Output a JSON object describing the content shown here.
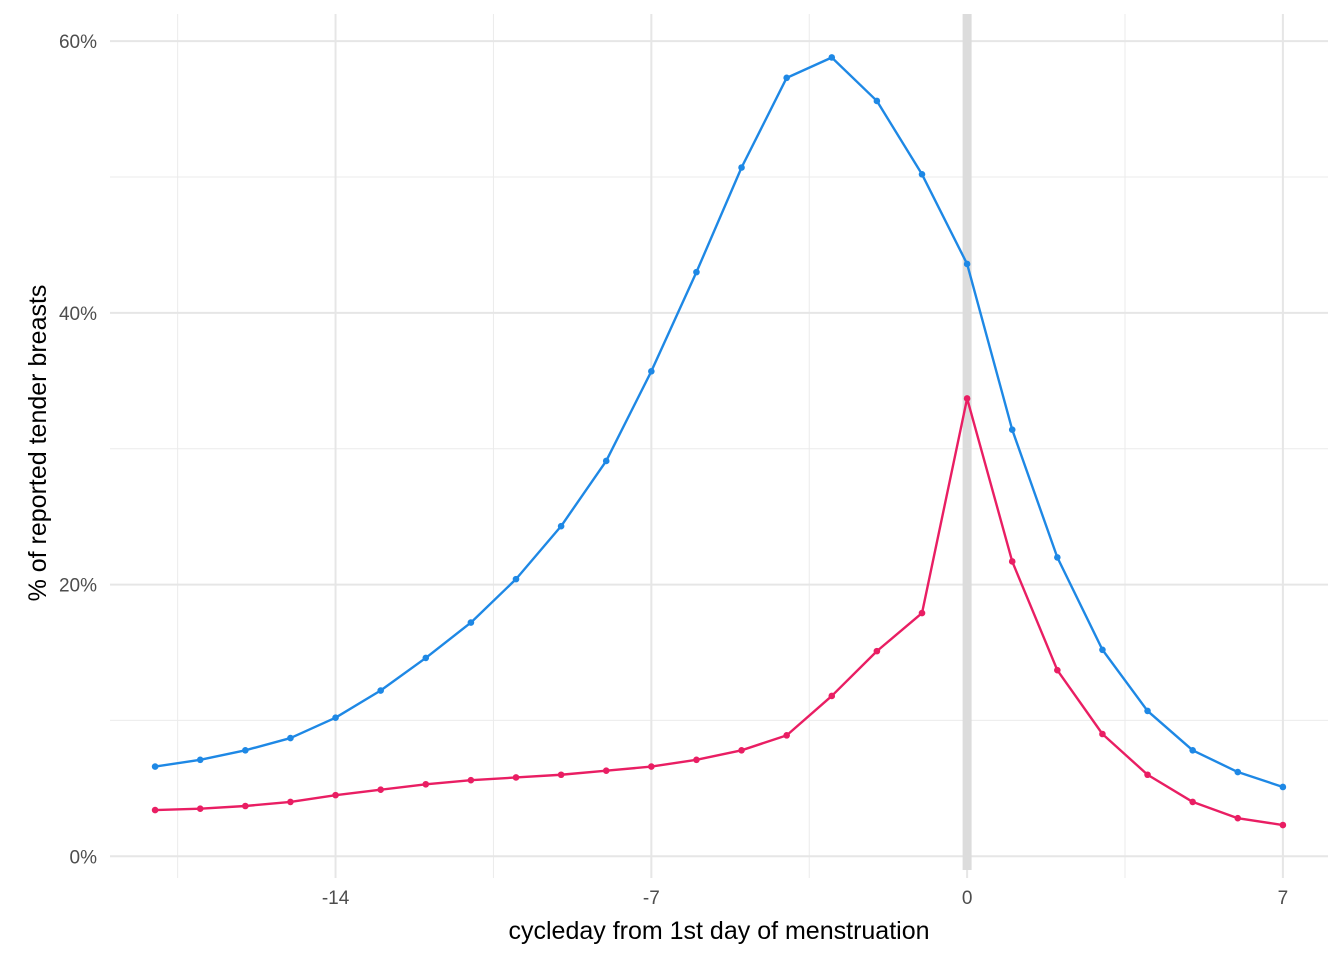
{
  "chart_data": {
    "type": "line",
    "title": "",
    "xlabel": "cycleday from 1st day of menstruation",
    "ylabel": "% of reported tender breasts",
    "x": [
      -18,
      -17,
      -16,
      -15,
      -14,
      -13,
      -12,
      -11,
      -10,
      -9,
      -8,
      -7,
      -6,
      -5,
      -4,
      -3,
      -2,
      -1,
      0,
      1,
      2,
      3,
      4,
      5,
      6,
      7
    ],
    "series": [
      {
        "color": "#1e88e5",
        "values": [
          6.6,
          7.1,
          7.8,
          8.7,
          10.2,
          12.2,
          14.6,
          17.2,
          20.4,
          24.3,
          29.1,
          35.7,
          43.0,
          50.7,
          57.3,
          58.8,
          55.6,
          50.2,
          43.6,
          31.4,
          22.0,
          15.2,
          10.7,
          7.8,
          6.2,
          5.1
        ]
      },
      {
        "color": "#e91e63",
        "values": [
          3.4,
          3.5,
          3.7,
          4.0,
          4.5,
          4.9,
          5.3,
          5.6,
          5.8,
          6.0,
          6.3,
          6.6,
          7.1,
          7.8,
          8.9,
          11.8,
          15.1,
          17.9,
          33.7,
          21.7,
          13.7,
          9.0,
          6.0,
          4.0,
          2.8,
          2.3
        ]
      }
    ],
    "xlim": [
      -19.0,
      8.0
    ],
    "ylim": [
      -1.6,
      62
    ],
    "x_ticks": [
      -14,
      -7,
      0,
      7
    ],
    "x_tick_labels": [
      "-14",
      "-7",
      "0",
      "7"
    ],
    "y_ticks": [
      0,
      20,
      40,
      60
    ],
    "y_tick_labels": [
      "0%",
      "20%",
      "40%",
      "60%"
    ],
    "x_minor_ticks": [
      -17.5,
      -10.5,
      -3.5,
      3.5
    ],
    "y_minor_ticks": [
      10,
      30,
      50
    ],
    "vline_x": 0,
    "vline_color": "#dcdcdc",
    "grid": true,
    "legend": "none"
  }
}
